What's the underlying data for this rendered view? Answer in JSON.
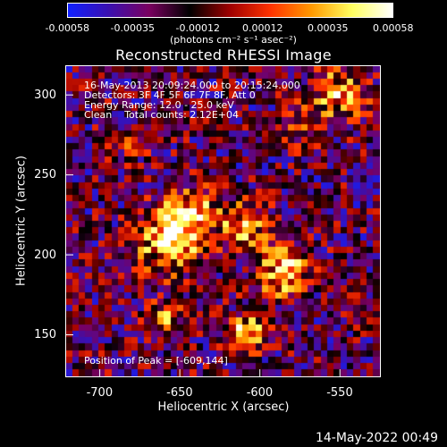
{
  "colorbar": {
    "ticks": [
      "-0.00058",
      "-0.00035",
      "-0.00012",
      "0.00012",
      "0.00035",
      "0.00058"
    ],
    "units": "(photons cm⁻² s⁻¹ asec⁻²)",
    "colors": [
      "#1020ff",
      "#3a10b0",
      "#7a0060",
      "#000000",
      "#a00000",
      "#ff3300",
      "#ff9900",
      "#ffff60",
      "#ffffff"
    ]
  },
  "info": {
    "line1": "16-May-2013 20:09:24.000 to 20:15:24.000",
    "line2": "Detectors: 3F 4F 5F 6F 7F 8F, Att 0",
    "line3": "Energy Range: 12.0 - 25.0 keV",
    "line4": "Clean    Total counts: 2.12E+04"
  },
  "peak": "Position of Peak = [-609,144]",
  "footer_date": "14-May-2022 00:49",
  "chart_data": {
    "type": "heatmap",
    "title": "Reconstructed RHESSI Image",
    "xlabel": "Heliocentric X (arcsec)",
    "ylabel": "Heliocentric Y (arcsec)",
    "x_ticks": [
      "-700",
      "-650",
      "-600",
      "-550"
    ],
    "y_ticks": [
      "300",
      "250",
      "200",
      "150"
    ],
    "xlim": [
      -721,
      -525
    ],
    "ylim": [
      124,
      318
    ],
    "colorbar_range": [
      -0.00058,
      0.00058
    ],
    "peak_position": [
      -609,
      144
    ],
    "grid_size": [
      48,
      48
    ],
    "sources": [
      {
        "x": -655,
        "y": 210,
        "sigma": 14,
        "amp": 1.0
      },
      {
        "x": -640,
        "y": 228,
        "sigma": 10,
        "amp": 0.6
      },
      {
        "x": -610,
        "y": 218,
        "sigma": 10,
        "amp": 0.7
      },
      {
        "x": -585,
        "y": 190,
        "sigma": 12,
        "amp": 0.8
      },
      {
        "x": -609,
        "y": 150,
        "sigma": 8,
        "amp": 1.0
      },
      {
        "x": -660,
        "y": 160,
        "sigma": 8,
        "amp": 0.6
      },
      {
        "x": -550,
        "y": 300,
        "sigma": 12,
        "amp": 0.7
      },
      {
        "x": -575,
        "y": 280,
        "sigma": 8,
        "amp": 0.4
      },
      {
        "x": -680,
        "y": 270,
        "sigma": 8,
        "amp": 0.3
      }
    ]
  }
}
